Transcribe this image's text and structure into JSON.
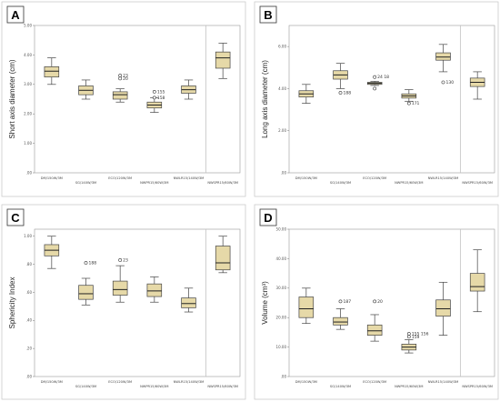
{
  "figure": {
    "background": "#ffffff"
  },
  "colors": {
    "box_fill": "#e6d9a8",
    "box_stroke": "#444444",
    "grid": "#eeeeee",
    "separator": "#bbbbbb",
    "frame": "#cccccc"
  },
  "chart_data": [
    {
      "type": "box",
      "panel_label": "A",
      "ylabel": "Short axis diameter (cm)",
      "xlabel": "",
      "ylim": [
        0,
        5
      ],
      "yticks": [
        0,
        1,
        2,
        3,
        4,
        5
      ],
      "ytick_labels": [
        ".00",
        "1.00",
        "2.00",
        "3.00",
        "4.00",
        "5.00"
      ],
      "categories": [
        "DM/150W/3M",
        "SG/140W/3M",
        "ECO/120W/3M",
        "NWPR15/60W/3M",
        "NWLR15/140W/3M",
        "NWSPR15/60W/3M"
      ],
      "boxes": [
        {
          "min": 3.0,
          "q1": 3.25,
          "median": 3.45,
          "q3": 3.6,
          "max": 3.9
        },
        {
          "min": 2.5,
          "q1": 2.65,
          "median": 2.8,
          "q3": 2.95,
          "max": 3.15
        },
        {
          "min": 2.4,
          "q1": 2.5,
          "median": 2.65,
          "q3": 2.75,
          "max": 2.85
        },
        {
          "min": 2.05,
          "q1": 2.2,
          "median": 2.3,
          "q3": 2.4,
          "max": 2.55
        },
        {
          "min": 2.5,
          "q1": 2.7,
          "median": 2.82,
          "q3": 2.95,
          "max": 3.15
        },
        {
          "min": 3.2,
          "q1": 3.55,
          "median": 3.9,
          "q3": 4.1,
          "max": 4.4
        }
      ],
      "outliers": [
        {
          "category_index": 2,
          "value": 3.3,
          "label": "23"
        },
        {
          "category_index": 2,
          "value": 3.2,
          "label": "20"
        },
        {
          "category_index": 3,
          "value": 2.75,
          "label": "155"
        },
        {
          "category_index": 3,
          "value": 2.55,
          "label": "158"
        }
      ],
      "separator_after_index": 4
    },
    {
      "type": "box",
      "panel_label": "B",
      "ylabel": "Long axis diameter (cm)",
      "xlabel": "",
      "ylim": [
        0,
        7
      ],
      "yticks": [
        0,
        2,
        4,
        6
      ],
      "ytick_labels": [
        ".00",
        "2.00",
        "4.00",
        "6.00"
      ],
      "categories": [
        "DM/150W/3M",
        "SG/140W/3M",
        "ECO/120W/3M",
        "NWPR15/60W/3M",
        "NWLR15/140W/3M",
        "NWSPR15/60W/3M"
      ],
      "boxes": [
        {
          "min": 3.3,
          "q1": 3.6,
          "median": 3.75,
          "q3": 3.9,
          "max": 4.2
        },
        {
          "min": 4.0,
          "q1": 4.45,
          "median": 4.65,
          "q3": 4.85,
          "max": 5.2
        },
        {
          "min": 4.15,
          "q1": 4.2,
          "median": 4.25,
          "q3": 4.3,
          "max": 4.35
        },
        {
          "min": 3.4,
          "q1": 3.55,
          "median": 3.65,
          "q3": 3.75,
          "max": 3.95
        },
        {
          "min": 4.8,
          "q1": 5.35,
          "median": 5.5,
          "q3": 5.7,
          "max": 6.1
        },
        {
          "min": 3.5,
          "q1": 4.1,
          "median": 4.3,
          "q3": 4.5,
          "max": 4.8
        }
      ],
      "outliers": [
        {
          "category_index": 1,
          "value": 3.8,
          "label": "188"
        },
        {
          "category_index": 2,
          "value": 4.55,
          "label": "24 18"
        },
        {
          "category_index": 2,
          "value": 4.0,
          "label": ""
        },
        {
          "category_index": 3,
          "value": 3.3,
          "label": "171"
        },
        {
          "category_index": 4,
          "value": 4.3,
          "label": "130"
        }
      ],
      "separator_after_index": 4
    },
    {
      "type": "box",
      "panel_label": "C",
      "ylabel": "Sphericity Index",
      "xlabel": "",
      "ylim": [
        0,
        1.05
      ],
      "yticks": [
        0,
        0.2,
        0.4,
        0.6,
        0.8,
        1.0
      ],
      "ytick_labels": [
        ".00",
        ".20",
        ".40",
        ".60",
        ".80",
        "1.00"
      ],
      "categories": [
        "DM/150W/3M",
        "SG/140W/3M",
        "ECO/120W/3M",
        "NWPR15/60W/3M",
        "NWLR15/140W/3M",
        "NWSPR15/60W/3M"
      ],
      "boxes": [
        {
          "min": 0.77,
          "q1": 0.86,
          "median": 0.9,
          "q3": 0.94,
          "max": 1.0
        },
        {
          "min": 0.51,
          "q1": 0.55,
          "median": 0.59,
          "q3": 0.65,
          "max": 0.7
        },
        {
          "min": 0.53,
          "q1": 0.58,
          "median": 0.62,
          "q3": 0.68,
          "max": 0.79
        },
        {
          "min": 0.53,
          "q1": 0.57,
          "median": 0.61,
          "q3": 0.66,
          "max": 0.71
        },
        {
          "min": 0.46,
          "q1": 0.49,
          "median": 0.52,
          "q3": 0.56,
          "max": 0.63
        },
        {
          "min": 0.74,
          "q1": 0.76,
          "median": 0.81,
          "q3": 0.93,
          "max": 1.0
        }
      ],
      "outliers": [
        {
          "category_index": 1,
          "value": 0.81,
          "label": "188"
        },
        {
          "category_index": 2,
          "value": 0.83,
          "label": "23"
        }
      ],
      "separator_after_index": 4
    },
    {
      "type": "box",
      "panel_label": "D",
      "ylabel": "Volume (cm³)",
      "xlabel": "",
      "ylim": [
        0,
        50
      ],
      "yticks": [
        0,
        10,
        20,
        30,
        40,
        50
      ],
      "ytick_labels": [
        ".00",
        "10.00",
        "20.00",
        "30.00",
        "40.00",
        "50.00"
      ],
      "categories": [
        "DM/150W/3M",
        "SG/140W/3M",
        "ECO/120W/3M",
        "NWPR15/60W/3M",
        "NWLR15/140W/3M",
        "NWSPR15/60W/3M"
      ],
      "boxes": [
        {
          "min": 18,
          "q1": 20,
          "median": 23,
          "q3": 27,
          "max": 30
        },
        {
          "min": 16,
          "q1": 17.5,
          "median": 18.5,
          "q3": 20,
          "max": 23
        },
        {
          "min": 12,
          "q1": 14,
          "median": 15.5,
          "q3": 17.5,
          "max": 21
        },
        {
          "min": 8,
          "q1": 9,
          "median": 10,
          "q3": 11,
          "max": 12.5
        },
        {
          "min": 14,
          "q1": 20.5,
          "median": 23,
          "q3": 26,
          "max": 32
        },
        {
          "min": 22,
          "q1": 29,
          "median": 30.5,
          "q3": 35,
          "max": 43
        }
      ],
      "outliers": [
        {
          "category_index": 1,
          "value": 25.5,
          "label": "187"
        },
        {
          "category_index": 2,
          "value": 25.5,
          "label": "20"
        },
        {
          "category_index": 3,
          "value": 14.5,
          "label": "155 156"
        },
        {
          "category_index": 3,
          "value": 13.5,
          "label": "159"
        }
      ],
      "separator_after_index": 4
    }
  ]
}
